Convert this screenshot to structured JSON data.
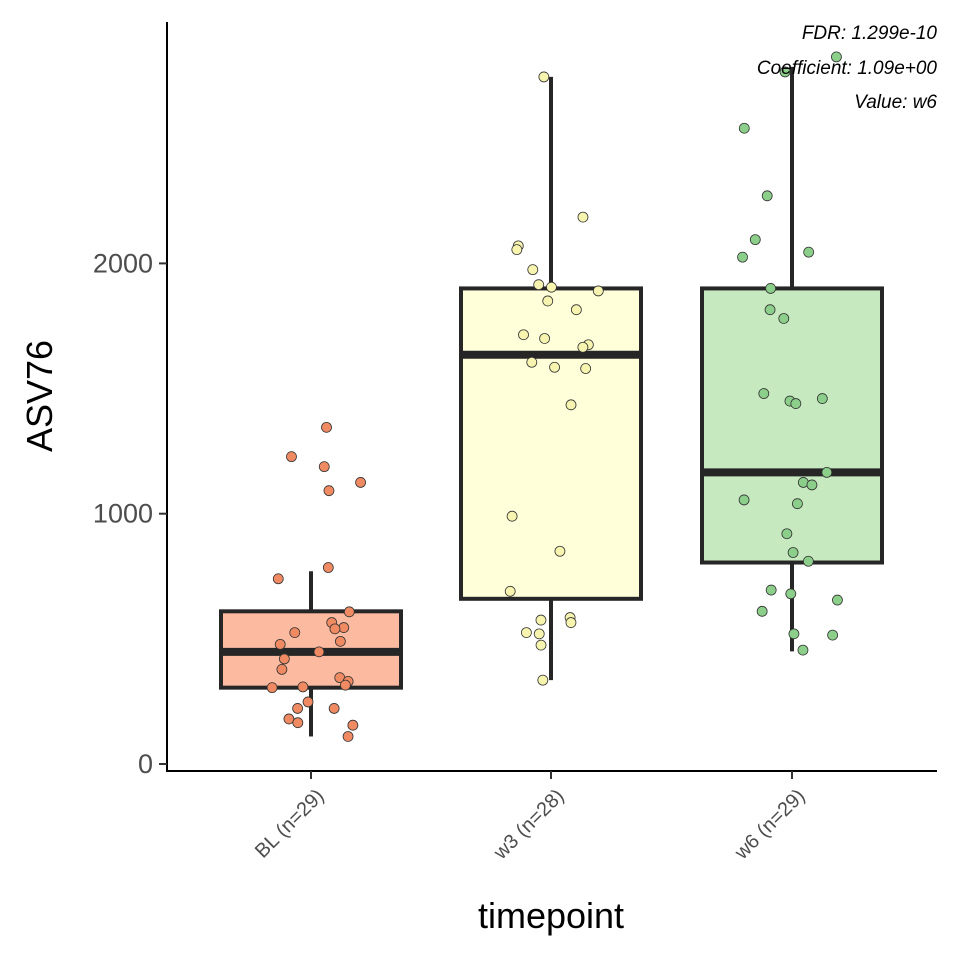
{
  "chart_data": {
    "type": "box",
    "xlabel": "timepoint",
    "ylabel": "ASV76",
    "ylim": [
      -30,
      2970
    ],
    "yticks": [
      0,
      1000,
      2000
    ],
    "ytick_labels": [
      "0",
      "1000",
      "2000"
    ],
    "grid": false,
    "legend": false,
    "annotations": [
      "FDR: 1.299e-10",
      "Coefficient: 1.09e+00",
      "Value: w6"
    ],
    "categories": [
      "BL (n=29)",
      "w3 (n=28)",
      "w6 (n=29)"
    ],
    "groups": [
      {
        "label": "BL (n=29)",
        "fill": "#fcbba1",
        "point_color": "#ef8a62",
        "box": {
          "whisker_low": 110,
          "q1": 305,
          "median": 448,
          "q3": 610,
          "whisker_high": 770
        },
        "points": [
          1345,
          1228,
          1188,
          1125,
          1092,
          785,
          740,
          608,
          565,
          545,
          540,
          525,
          490,
          478,
          448,
          420,
          378,
          345,
          330,
          315,
          305,
          248,
          222,
          222,
          180,
          165,
          155,
          110,
          308
        ]
      },
      {
        "label": "w3 (n=28)",
        "fill": "#ffffd9",
        "point_color": "#f7f4b0",
        "box": {
          "whisker_low": 335,
          "q1": 660,
          "median": 1635,
          "q3": 1900,
          "whisker_high": 2745
        },
        "points": [
          2745,
          2185,
          2070,
          2055,
          1975,
          1915,
          1905,
          1890,
          1850,
          1815,
          1715,
          1700,
          1675,
          1665,
          1605,
          1585,
          1580,
          1435,
          990,
          850,
          690,
          585,
          575,
          565,
          525,
          520,
          475,
          335
        ]
      },
      {
        "label": "w6 (n=29)",
        "fill": "#c7e9c0",
        "point_color": "#8ccf8a",
        "box": {
          "whisker_low": 450,
          "q1": 805,
          "median": 1165,
          "q3": 1900,
          "whisker_high": 2785
        },
        "points": [
          2825,
          2765,
          2540,
          2270,
          2095,
          2045,
          2025,
          1900,
          1815,
          1780,
          1480,
          1460,
          1450,
          1440,
          1165,
          1125,
          1115,
          1055,
          1040,
          920,
          845,
          810,
          695,
          680,
          655,
          610,
          520,
          515,
          455
        ]
      }
    ]
  }
}
